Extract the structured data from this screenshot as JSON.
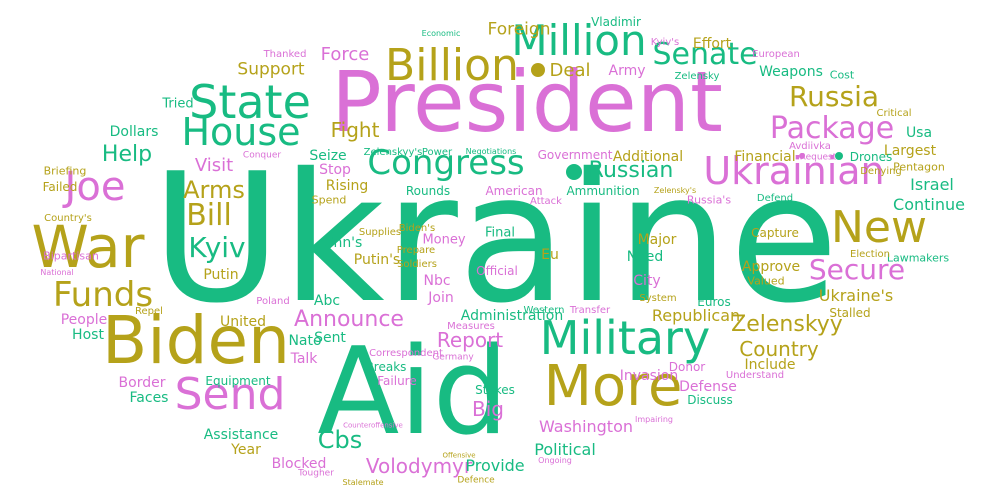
{
  "words": [
    {
      "text": "Ukraine",
      "c": "g"
    },
    {
      "text": "Aid",
      "c": "g"
    },
    {
      "text": "President",
      "c": "p"
    },
    {
      "text": "Biden",
      "c": "o"
    },
    {
      "text": "War",
      "c": "o"
    },
    {
      "text": "Military",
      "c": "g"
    },
    {
      "text": "More",
      "c": "o"
    },
    {
      "text": "Send",
      "c": "p"
    },
    {
      "text": "New",
      "c": "o"
    },
    {
      "text": "Billion",
      "c": "o"
    },
    {
      "text": "Million",
      "c": "g"
    },
    {
      "text": "State",
      "c": "g"
    },
    {
      "text": "House",
      "c": "g"
    },
    {
      "text": "Joe",
      "c": "p"
    },
    {
      "text": "Ukrainian",
      "c": "p"
    },
    {
      "text": "Congress",
      "c": "g"
    },
    {
      "text": "Funds",
      "c": "o"
    },
    {
      "text": "Bill",
      "c": "o"
    },
    {
      "text": "Package",
      "c": "p"
    },
    {
      "text": "Secure",
      "c": "p"
    },
    {
      "text": "Senate",
      "c": "g"
    },
    {
      "text": "Russia",
      "c": "o"
    },
    {
      "text": "Kyiv",
      "c": "g"
    },
    {
      "text": "Arms",
      "c": "o"
    },
    {
      "text": "Cbs",
      "c": "g"
    },
    {
      "text": "Volodymyr",
      "c": "p"
    },
    {
      "text": "Zelenskyy",
      "c": "o"
    },
    {
      "text": "Country",
      "c": "o"
    },
    {
      "text": "Announce",
      "c": "p"
    },
    {
      "text": "Russian",
      "c": "g"
    },
    {
      "text": "Help",
      "c": "g"
    },
    {
      "text": "Report",
      "c": "p"
    },
    {
      "text": "Big",
      "c": "p"
    },
    {
      "text": "Fight",
      "c": "o"
    },
    {
      "text": "Visit",
      "c": "p"
    },
    {
      "text": "Force",
      "c": "p"
    },
    {
      "text": "Deal",
      "c": "o"
    },
    {
      "text": "Support",
      "c": "o"
    },
    {
      "text": "Foreign",
      "c": "o"
    },
    {
      "text": "Ukraine's",
      "c": "o"
    },
    {
      "text": "Republican",
      "c": "o"
    },
    {
      "text": "Washington",
      "c": "p"
    },
    {
      "text": "Political",
      "c": "g"
    },
    {
      "text": "Provide",
      "c": "g"
    },
    {
      "text": "Assistance",
      "c": "g"
    },
    {
      "text": "Blocked",
      "c": "p"
    },
    {
      "text": "Year",
      "c": "o"
    },
    {
      "text": "United",
      "c": "o"
    },
    {
      "text": "Invasion",
      "c": "p"
    },
    {
      "text": "Defense",
      "c": "p"
    },
    {
      "text": "Include",
      "c": "o"
    },
    {
      "text": "Israel",
      "c": "g"
    },
    {
      "text": "Continue",
      "c": "g"
    },
    {
      "text": "Largest",
      "c": "o"
    },
    {
      "text": "Usa",
      "c": "g"
    },
    {
      "text": "Army",
      "c": "p"
    },
    {
      "text": "Effort",
      "c": "o"
    },
    {
      "text": "Weapons",
      "c": "g"
    },
    {
      "text": "Seize",
      "c": "g"
    },
    {
      "text": "Stop",
      "c": "p"
    },
    {
      "text": "Rising",
      "c": "o"
    },
    {
      "text": "Cnn's",
      "c": "g"
    },
    {
      "text": "Putin's",
      "c": "o"
    },
    {
      "text": "Money",
      "c": "p"
    },
    {
      "text": "Final",
      "c": "g"
    },
    {
      "text": "Eu",
      "c": "o"
    },
    {
      "text": "Nbc",
      "c": "p"
    },
    {
      "text": "Join",
      "c": "p"
    },
    {
      "text": "Administration",
      "c": "g"
    },
    {
      "text": "Sent",
      "c": "g"
    },
    {
      "text": "Nato",
      "c": "g"
    },
    {
      "text": "Talk",
      "c": "p"
    },
    {
      "text": "Abc",
      "c": "g"
    },
    {
      "text": "Putin",
      "c": "o"
    },
    {
      "text": "Major",
      "c": "o"
    },
    {
      "text": "Need",
      "c": "g"
    },
    {
      "text": "City",
      "c": "p"
    },
    {
      "text": "Approve",
      "c": "o"
    },
    {
      "text": "Capture",
      "c": "o"
    },
    {
      "text": "Euros",
      "c": "g"
    },
    {
      "text": "Financial",
      "c": "o"
    },
    {
      "text": "Drones",
      "c": "g"
    },
    {
      "text": "Additional",
      "c": "o"
    },
    {
      "text": "Government",
      "c": "p"
    },
    {
      "text": "Ammunition",
      "c": "g"
    },
    {
      "text": "American",
      "c": "p"
    },
    {
      "text": "Rounds",
      "c": "g"
    },
    {
      "text": "Official",
      "c": "p"
    },
    {
      "text": "Border",
      "c": "p"
    },
    {
      "text": "Faces",
      "c": "g"
    },
    {
      "text": "Equipment",
      "c": "g"
    },
    {
      "text": "Breaks",
      "c": "g"
    },
    {
      "text": "Failure",
      "c": "p"
    },
    {
      "text": "Stakes",
      "c": "g"
    },
    {
      "text": "Donor",
      "c": "p"
    },
    {
      "text": "Discuss",
      "c": "g"
    },
    {
      "text": "Dollars",
      "c": "g"
    },
    {
      "text": "Tried",
      "c": "g"
    },
    {
      "text": "Briefing",
      "c": "o"
    },
    {
      "text": "Failed",
      "c": "o"
    },
    {
      "text": "Country's",
      "c": "o"
    },
    {
      "text": "Bipartisan",
      "c": "p"
    },
    {
      "text": "National",
      "c": "p"
    },
    {
      "text": "People",
      "c": "p"
    },
    {
      "text": "Host",
      "c": "g"
    },
    {
      "text": "Repel",
      "c": "o"
    },
    {
      "text": "Poland",
      "c": "p"
    },
    {
      "text": "Western",
      "c": "g"
    },
    {
      "text": "Transfer",
      "c": "p"
    },
    {
      "text": "Measures",
      "c": "p"
    },
    {
      "text": "Correspondent",
      "c": "p"
    },
    {
      "text": "Germany",
      "c": "p"
    },
    {
      "text": "Stalled",
      "c": "o"
    },
    {
      "text": "Lawmakers",
      "c": "g"
    },
    {
      "text": "Election",
      "c": "o"
    },
    {
      "text": "Valued",
      "c": "o"
    },
    {
      "text": "System",
      "c": "o"
    },
    {
      "text": "Understand",
      "c": "p"
    },
    {
      "text": "Pentagon",
      "c": "o"
    },
    {
      "text": "Denying",
      "c": "o"
    },
    {
      "text": "Critical",
      "c": "o"
    },
    {
      "text": "Cost",
      "c": "g"
    },
    {
      "text": "European",
      "c": "p"
    },
    {
      "text": "Zelensky",
      "c": "g"
    },
    {
      "text": "Kyiv's",
      "c": "p"
    },
    {
      "text": "Vladimir",
      "c": "g"
    },
    {
      "text": "Economic",
      "c": "g"
    },
    {
      "text": "Thanked",
      "c": "p"
    },
    {
      "text": "Conquer",
      "c": "p"
    },
    {
      "text": "Zelenskyy's",
      "c": "g"
    },
    {
      "text": "Power",
      "c": "g"
    },
    {
      "text": "Negotiations",
      "c": "g"
    },
    {
      "text": "Avdiivka",
      "c": "p"
    },
    {
      "text": "Request",
      "c": "p"
    },
    {
      "text": "Zelensky's",
      "c": "o"
    },
    {
      "text": "Defend",
      "c": "g"
    },
    {
      "text": "Russia's",
      "c": "p"
    },
    {
      "text": "Attack",
      "c": "p"
    },
    {
      "text": "Spend",
      "c": "o"
    },
    {
      "text": "Supplies",
      "c": "o"
    },
    {
      "text": "Biden's",
      "c": "o"
    },
    {
      "text": "Prepare",
      "c": "o"
    },
    {
      "text": "Soldiers",
      "c": "o"
    },
    {
      "text": "Impairing",
      "c": "p"
    },
    {
      "text": "Ongoing",
      "c": "p"
    },
    {
      "text": "Counteroffensive",
      "c": "p"
    },
    {
      "text": "Offensive",
      "c": "o"
    },
    {
      "text": "Tougher",
      "c": "p"
    },
    {
      "text": "Defence",
      "c": "o"
    },
    {
      "text": "Stalemate",
      "c": "o"
    }
  ],
  "dots": [
    {
      "c": "o"
    },
    {
      "c": "g"
    },
    {
      "c": "g"
    },
    {
      "c": "p"
    }
  ]
}
